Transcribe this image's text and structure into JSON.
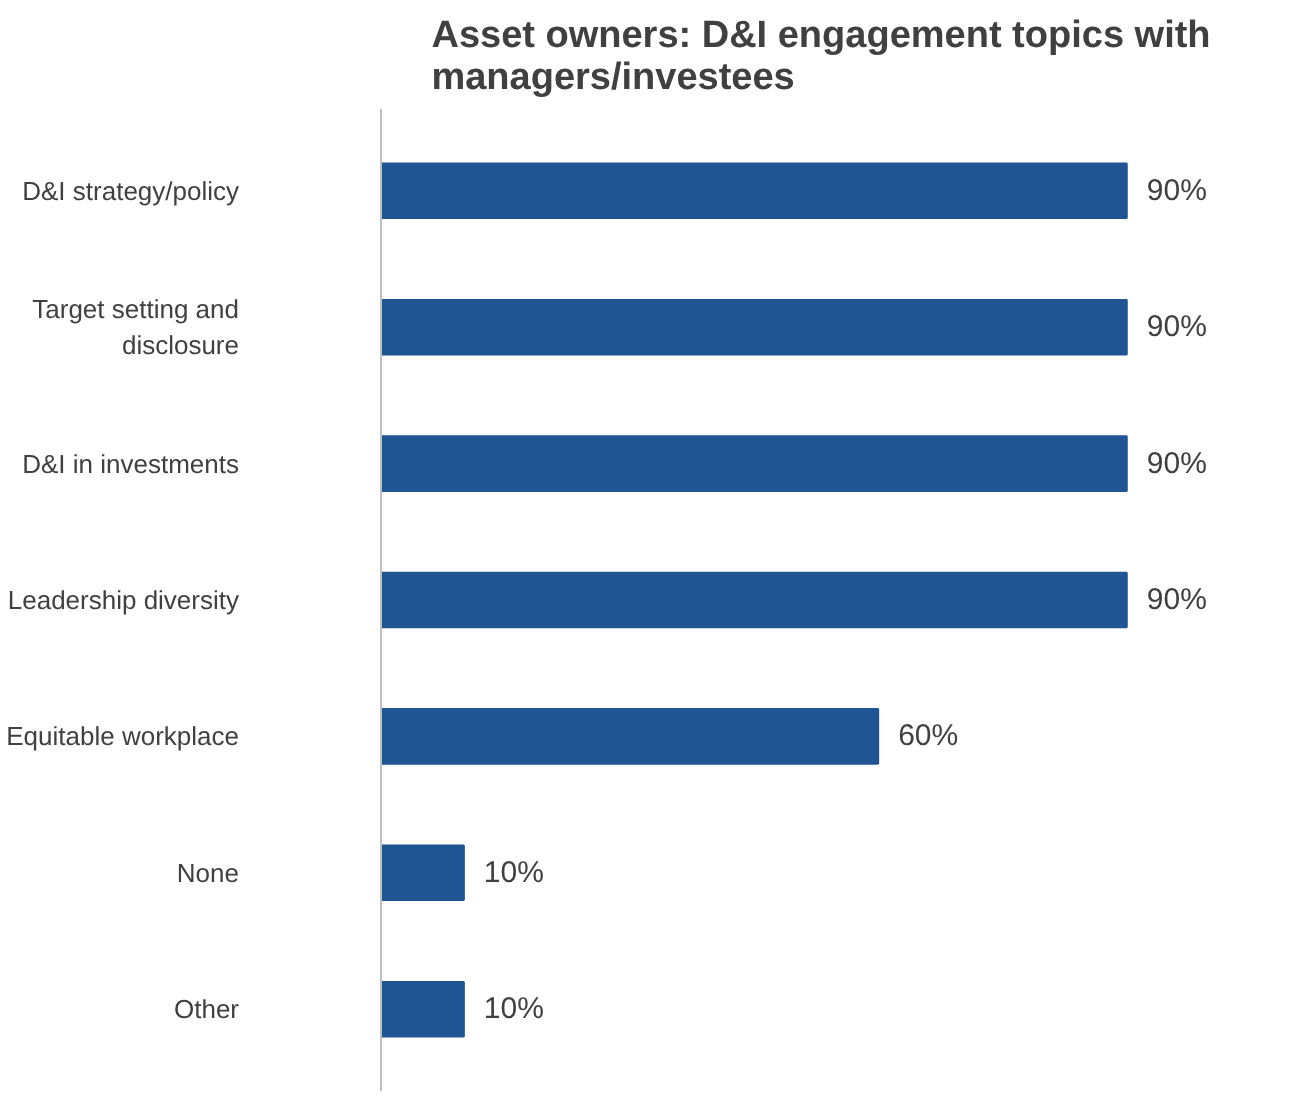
{
  "chart_data": {
    "type": "bar",
    "orientation": "horizontal",
    "title": "Asset owners: D&I engagement topics with managers/investees",
    "categories": [
      "D&I strategy/policy",
      "Target setting and disclosure",
      "D&I in investments",
      "Leadership diversity",
      "Equitable workplace",
      "None",
      "Other"
    ],
    "values": [
      90,
      90,
      90,
      90,
      60,
      10,
      10
    ],
    "value_labels": [
      "90%",
      "90%",
      "90%",
      "90%",
      "60%",
      "10%",
      "10%"
    ],
    "color": "#1f5593",
    "tick_labels": "y",
    "grid": false
  }
}
